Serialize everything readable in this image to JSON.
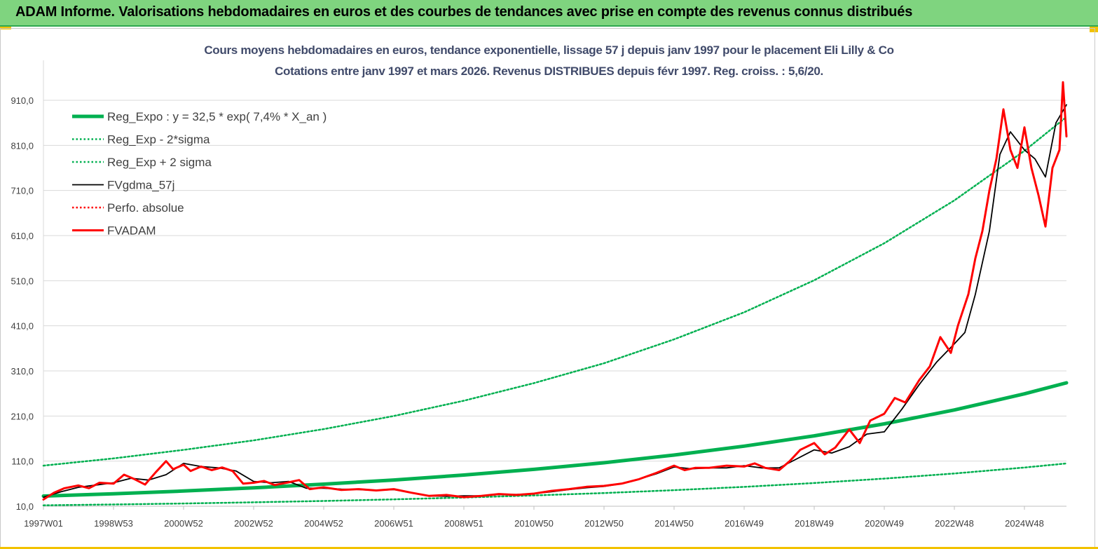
{
  "header": {
    "title": "ADAM Informe. Valorisations hebdomadaires en euros et des courbes de tendances avec prise en compte des revenus connus distribués"
  },
  "chart_data": {
    "type": "line",
    "title": "Cours moyens hebdomadaires en euros, tendance exponentielle, lissage 57 j depuis janv 1997 pour le placement Eli Lilly & Co",
    "subtitle": "Cotations entre janv 1997 et mars 2026. Revenus DISTRIBUES depuis févr 1997. Reg. croiss. : 5,6/20.",
    "x_tick_labels": [
      "1997W01",
      "1998W53",
      "2000W52",
      "2002W52",
      "2004W52",
      "2006W51",
      "2008W51",
      "2010W50",
      "2012W50",
      "2014W50",
      "2016W49",
      "2018W49",
      "2020W49",
      "2022W48",
      "2024W48"
    ],
    "x_ticks": [
      1997.0,
      1999.0,
      2001.0,
      2003.0,
      2005.0,
      2007.0,
      2009.0,
      2011.0,
      2013.0,
      2015.0,
      2017.0,
      2019.0,
      2021.0,
      2023.0,
      2025.0
    ],
    "xlim": [
      1997.0,
      2026.2
    ],
    "y_tick_labels": [
      "10,0",
      "110,0",
      "210,0",
      "310,0",
      "410,0",
      "510,0",
      "610,0",
      "710,0",
      "810,0",
      "910,0"
    ],
    "y_ticks": [
      10,
      110,
      210,
      310,
      410,
      510,
      610,
      710,
      810,
      910
    ],
    "ylim": [
      10,
      1000
    ],
    "grid": true,
    "legend_position": "top-left",
    "series": [
      {
        "name": "Reg_Expo : y = 32,5 * exp( 7,4% *  X_an )",
        "color": "#00b050",
        "style": "solid-thick",
        "x": [
          1997,
          1999,
          2001,
          2003,
          2005,
          2007,
          2009,
          2011,
          2013,
          2015,
          2017,
          2019,
          2021,
          2023,
          2025,
          2026.2
        ],
        "values": [
          32.5,
          37.7,
          43.7,
          50.7,
          58.9,
          68.2,
          79.1,
          91.8,
          106.4,
          123.4,
          143.2,
          166.1,
          192.6,
          223.4,
          259.2,
          283.5
        ]
      },
      {
        "name": "Reg_Exp - 2*sigma",
        "color": "#00b050",
        "style": "dotted",
        "x": [
          1997,
          1999,
          2001,
          2003,
          2005,
          2007,
          2009,
          2011,
          2013,
          2015,
          2017,
          2019,
          2021,
          2023,
          2025,
          2026.2
        ],
        "values": [
          12.0,
          13.9,
          16.1,
          18.7,
          21.7,
          25.2,
          29.2,
          33.9,
          39.3,
          45.6,
          52.9,
          61.4,
          71.2,
          82.6,
          95.8,
          104.8
        ]
      },
      {
        "name": "Reg_Exp + 2 sigma",
        "color": "#00b050",
        "style": "dotted",
        "x": [
          1997,
          1999,
          2001,
          2003,
          2005,
          2007,
          2009,
          2011,
          2013,
          2015,
          2017,
          2019,
          2021,
          2023,
          2025,
          2026.2
        ],
        "values": [
          100,
          116,
          135,
          156,
          181,
          210,
          244,
          283,
          327,
          380,
          440,
          511,
          593,
          688,
          798,
          873
        ]
      },
      {
        "name": "FVgdma_57j",
        "color": "#000000",
        "style": "solid",
        "x": [
          1997.0,
          1997.5,
          1998.0,
          1998.5,
          1999.0,
          1999.5,
          2000.0,
          2000.5,
          2001.0,
          2001.5,
          2002.0,
          2002.5,
          2003.0,
          2003.5,
          2004.0,
          2004.5,
          2005.0,
          2005.5,
          2006.0,
          2006.5,
          2007.0,
          2007.5,
          2008.0,
          2008.5,
          2009.0,
          2009.5,
          2010.0,
          2010.5,
          2011.0,
          2011.5,
          2012.0,
          2012.5,
          2013.0,
          2013.5,
          2014.0,
          2014.5,
          2015.0,
          2015.5,
          2016.0,
          2016.5,
          2017.0,
          2017.5,
          2018.0,
          2018.5,
          2019.0,
          2019.5,
          2020.0,
          2020.5,
          2021.0,
          2021.5,
          2022.0,
          2022.5,
          2023.0,
          2023.3,
          2023.6,
          2024.0,
          2024.3,
          2024.6,
          2025.0,
          2025.3,
          2025.6,
          2025.9,
          2026.2
        ],
        "values": [
          30,
          42,
          52,
          57,
          62,
          72,
          68,
          80,
          105,
          98,
          95,
          88,
          65,
          62,
          65,
          50,
          50,
          48,
          47,
          45,
          47,
          40,
          33,
          32,
          33,
          33,
          36,
          36,
          38,
          42,
          47,
          51,
          54,
          60,
          70,
          82,
          97,
          93,
          95,
          95,
          100,
          95,
          95,
          115,
          135,
          128,
          142,
          170,
          175,
          225,
          280,
          330,
          370,
          395,
          480,
          620,
          790,
          840,
          800,
          780,
          740,
          860,
          900
        ]
      },
      {
        "name": "Perfo. absolue",
        "color": "#ff0000",
        "style": "dotted",
        "x": [],
        "values": []
      },
      {
        "name": "FVADAM",
        "color": "#ff0000",
        "style": "solid-thick",
        "x": [
          1997.0,
          1997.3,
          1997.6,
          1998.0,
          1998.3,
          1998.6,
          1999.0,
          1999.3,
          1999.6,
          1999.9,
          2000.2,
          2000.5,
          2000.7,
          2001.0,
          2001.2,
          2001.5,
          2001.8,
          2002.1,
          2002.4,
          2002.7,
          2003.0,
          2003.3,
          2003.6,
          2004.0,
          2004.3,
          2004.6,
          2005.0,
          2005.5,
          2006.0,
          2006.5,
          2007.0,
          2007.5,
          2008.0,
          2008.5,
          2009.0,
          2009.5,
          2010.0,
          2010.5,
          2011.0,
          2011.5,
          2012.0,
          2012.5,
          2013.0,
          2013.5,
          2014.0,
          2014.5,
          2015.0,
          2015.3,
          2015.6,
          2016.0,
          2016.5,
          2017.0,
          2017.3,
          2017.6,
          2018.0,
          2018.3,
          2018.6,
          2019.0,
          2019.3,
          2019.6,
          2020.0,
          2020.3,
          2020.6,
          2021.0,
          2021.3,
          2021.6,
          2022.0,
          2022.3,
          2022.6,
          2022.9,
          2023.1,
          2023.4,
          2023.6,
          2023.8,
          2024.0,
          2024.2,
          2024.4,
          2024.6,
          2024.8,
          2025.0,
          2025.2,
          2025.4,
          2025.6,
          2025.8,
          2026.0,
          2026.1,
          2026.2
        ],
        "values": [
          25,
          40,
          50,
          56,
          50,
          62,
          60,
          80,
          70,
          58,
          85,
          110,
          92,
          102,
          88,
          98,
          90,
          96,
          88,
          60,
          62,
          66,
          57,
          63,
          68,
          48,
          52,
          46,
          48,
          45,
          48,
          40,
          33,
          35,
          30,
          33,
          37,
          35,
          38,
          44,
          48,
          53,
          55,
          60,
          70,
          84,
          100,
          90,
          95,
          95,
          100,
          98,
          105,
          95,
          90,
          110,
          135,
          150,
          125,
          140,
          180,
          150,
          200,
          215,
          250,
          240,
          290,
          320,
          385,
          350,
          410,
          480,
          560,
          620,
          710,
          780,
          890,
          800,
          760,
          850,
          760,
          700,
          630,
          760,
          800,
          950,
          830
        ]
      }
    ]
  }
}
